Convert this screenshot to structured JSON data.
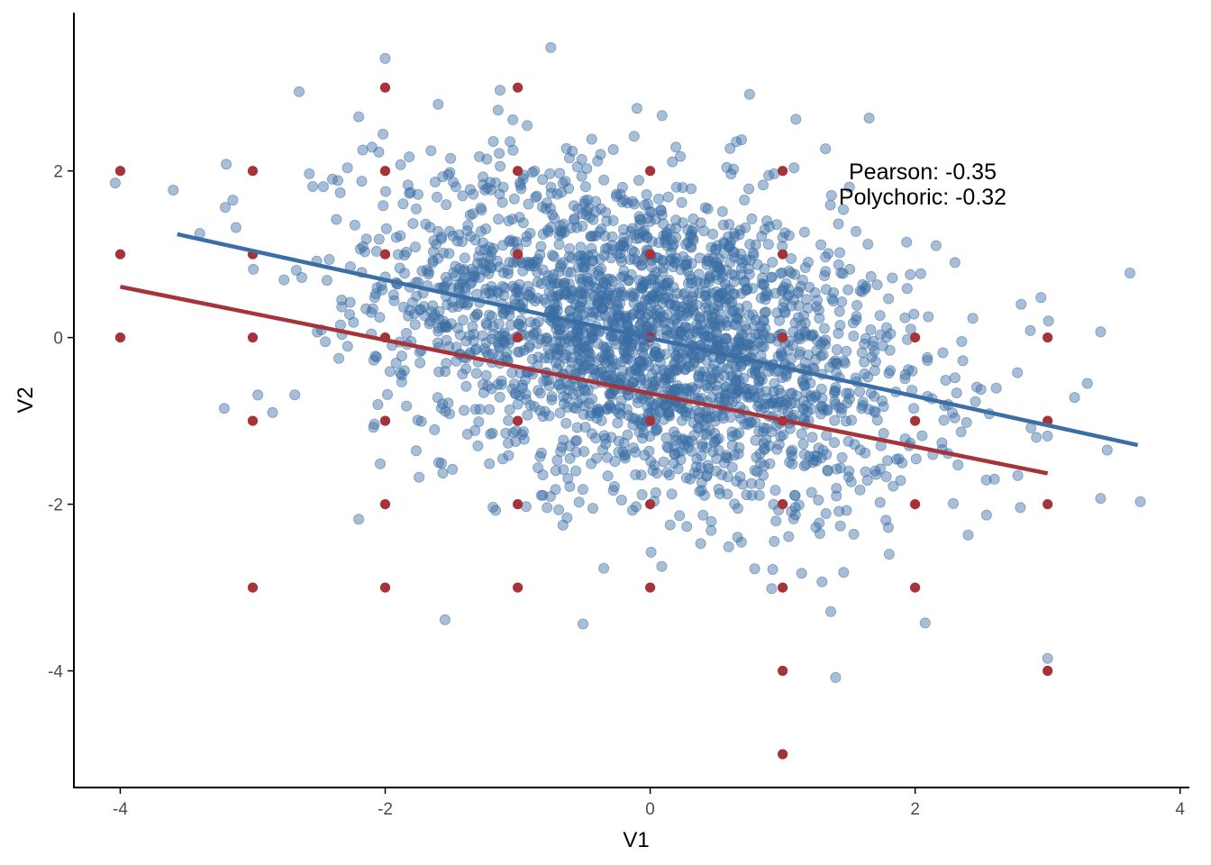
{
  "chart_data": {
    "type": "scatter",
    "xlabel": "V1",
    "ylabel": "V2",
    "xlim": [
      -4.35,
      4.07
    ],
    "ylim": [
      -5.4,
      3.9
    ],
    "x_ticks": [
      -4,
      -2,
      0,
      2,
      4
    ],
    "y_ticks": [
      -4,
      -2,
      0,
      2
    ],
    "x_tick_labels": [
      "-4",
      "-2",
      "0",
      "2",
      "4"
    ],
    "y_tick_labels": [
      "-4",
      "-2",
      "0",
      "2"
    ],
    "grid": false,
    "colors": {
      "continuous": "#3b6ea5",
      "discrete": "#a5333a"
    },
    "annotations": [
      "Pearson: -0.35",
      "Polychoric: -0.32"
    ],
    "annotation_position": {
      "x": 2.0,
      "y": 1.9
    },
    "series": [
      {
        "kind": "continuous",
        "color": "#3b6ea5",
        "opacity": 0.45,
        "n_points": 2500,
        "correlation": -0.35,
        "sample_points": [
          [
            -0.75,
            3.48
          ],
          [
            -2.0,
            3.35
          ],
          [
            -2.65,
            2.95
          ],
          [
            0.75,
            2.92
          ],
          [
            1.1,
            2.62
          ],
          [
            -3.6,
            1.77
          ],
          [
            -3.2,
            2.08
          ],
          [
            -3.15,
            1.65
          ],
          [
            -2.2,
            2.65
          ],
          [
            -1.6,
            2.8
          ],
          [
            3.4,
            0.07
          ],
          [
            3.3,
            -0.55
          ],
          [
            3.45,
            -1.35
          ],
          [
            3.7,
            -1.97
          ],
          [
            3.4,
            -1.93
          ],
          [
            3.0,
            -3.85
          ],
          [
            1.4,
            -4.08
          ],
          [
            2.4,
            -2.37
          ],
          [
            -2.2,
            -2.18
          ],
          [
            -0.35,
            -2.77
          ],
          [
            -3.4,
            1.25
          ],
          [
            -2.85,
            -0.9
          ],
          [
            -2.35,
            -0.25
          ],
          [
            2.95,
            0.48
          ],
          [
            2.8,
            0.4
          ],
          [
            -0.1,
            2.75
          ],
          [
            -0.55,
            2.05
          ],
          [
            0.65,
            2.35
          ],
          [
            1.0,
            1.2
          ],
          [
            -1.3,
            -1.3
          ],
          [
            0.3,
            -0.35
          ],
          [
            0.1,
            0.25
          ],
          [
            -0.2,
            -0.15
          ],
          [
            0.5,
            0.55
          ],
          [
            1.4,
            -0.6
          ],
          [
            -1.6,
            0.95
          ],
          [
            -1.0,
            -0.8
          ],
          [
            2.3,
            0.9
          ],
          [
            2.1,
            0.25
          ],
          [
            1.7,
            -1.6
          ]
        ]
      },
      {
        "kind": "discrete",
        "color": "#a5333a",
        "points": [
          [
            -4,
            2
          ],
          [
            -4,
            1
          ],
          [
            -4,
            0
          ],
          [
            -3,
            2
          ],
          [
            -3,
            1
          ],
          [
            -3,
            0
          ],
          [
            -3,
            -1
          ],
          [
            -3,
            -3
          ],
          [
            -2,
            3
          ],
          [
            -2,
            2
          ],
          [
            -2,
            1
          ],
          [
            -2,
            0
          ],
          [
            -2,
            -1
          ],
          [
            -2,
            -2
          ],
          [
            -2,
            -3
          ],
          [
            -1,
            3
          ],
          [
            -1,
            2
          ],
          [
            -1,
            1
          ],
          [
            -1,
            0
          ],
          [
            -1,
            -1
          ],
          [
            -1,
            -2
          ],
          [
            -1,
            -3
          ],
          [
            0,
            2
          ],
          [
            0,
            1
          ],
          [
            0,
            0
          ],
          [
            0,
            -1
          ],
          [
            0,
            -2
          ],
          [
            0,
            -3
          ],
          [
            1,
            2
          ],
          [
            1,
            1
          ],
          [
            1,
            0
          ],
          [
            1,
            -1
          ],
          [
            1,
            -2
          ],
          [
            1,
            -3
          ],
          [
            1,
            -4
          ],
          [
            1,
            -5
          ],
          [
            2,
            0
          ],
          [
            2,
            -1
          ],
          [
            2,
            -2
          ],
          [
            2,
            -3
          ],
          [
            3,
            0
          ],
          [
            3,
            -1
          ],
          [
            3,
            -2
          ],
          [
            3,
            -4
          ]
        ]
      }
    ],
    "fit_lines": [
      {
        "kind": "continuous",
        "color": "#3b6ea5",
        "x": [
          -3.57,
          3.68
        ],
        "y": [
          1.24,
          -1.29
        ]
      },
      {
        "kind": "discrete",
        "color": "#a5333a",
        "x": [
          -4.0,
          3.0
        ],
        "y": [
          0.61,
          -1.63
        ]
      }
    ]
  }
}
